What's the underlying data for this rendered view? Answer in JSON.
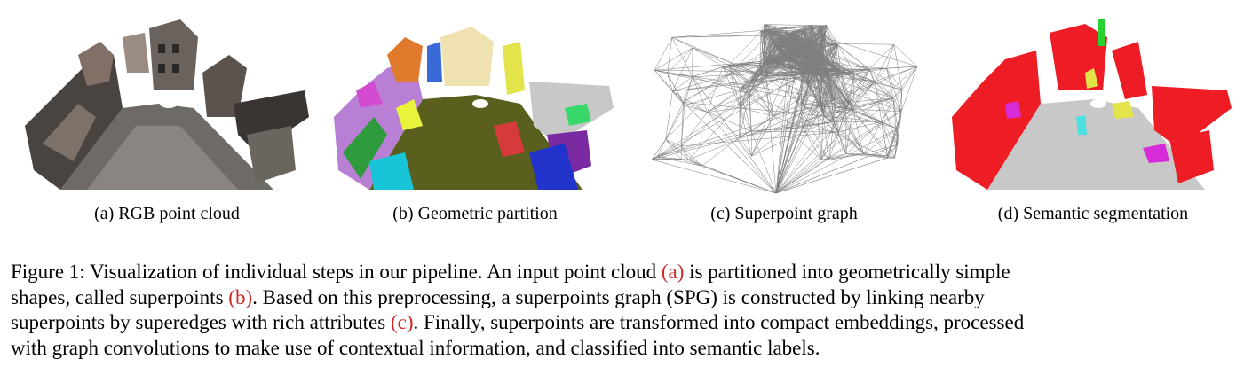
{
  "panels": [
    {
      "id": "a",
      "caption": "(a) RGB point cloud"
    },
    {
      "id": "b",
      "caption": "(b) Geometric partition"
    },
    {
      "id": "c",
      "caption": "(c) Superpoint graph"
    },
    {
      "id": "d",
      "caption": "(d) Semantic segmentation"
    }
  ],
  "figure_caption": {
    "line1_pre": "Figure 1: Visualization of individual steps in our pipeline. An input point cloud ",
    "ref_a": "(a)",
    "line1_post": " is partitioned into geometrically simple",
    "line2_pre": "shapes, called superpoints ",
    "ref_b": "(b)",
    "line2_post": ". Based on this preprocessing, a superpoints graph (SPG) is constructed by linking nearby",
    "line3_pre": "superpoints by superedges with rich attributes ",
    "ref_c": "(c)",
    "line3_post": ". Finally, superpoints are transformed into compact embeddings, processed",
    "line4": "with graph convolutions to make use of contextual information, and classified into semantic labels."
  },
  "colors": {
    "reference_link": "#cc2a2a",
    "ground_partition": "#5a5f1e",
    "semantic_building": "#ee1c24",
    "semantic_road": "#c8c8c8",
    "graph_edges": "#555555"
  }
}
